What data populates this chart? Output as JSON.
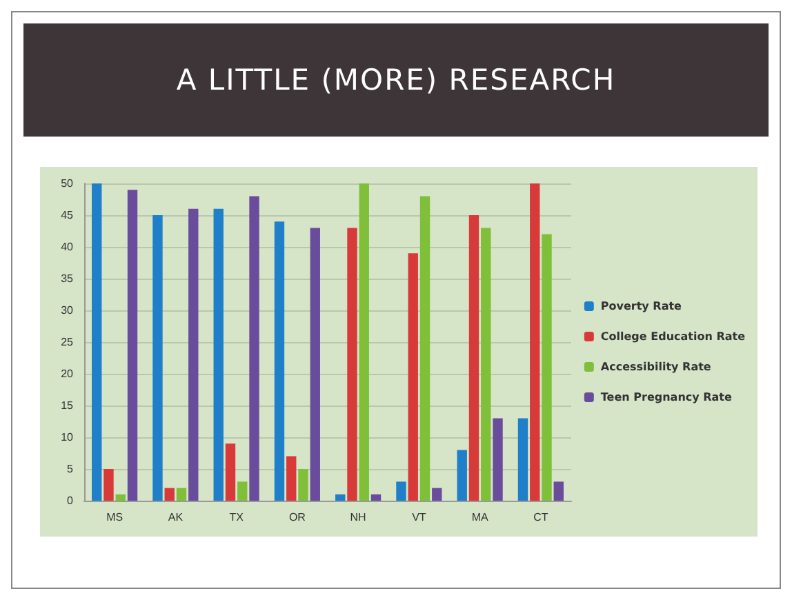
{
  "chart_data": {
    "type": "bar",
    "title": "A LITTLE (MORE) RESEARCH",
    "categories": [
      "MS",
      "AK",
      "TX",
      "OR",
      "NH",
      "VT",
      "MA",
      "CT"
    ],
    "series": [
      {
        "name": "Poverty Rate",
        "color": "#1f7fc8",
        "values": [
          50,
          45,
          46,
          44,
          1,
          3,
          8,
          13
        ]
      },
      {
        "name": "College Education Rate",
        "color": "#d83a3a",
        "values": [
          5,
          2,
          9,
          7,
          43,
          39,
          45,
          50
        ]
      },
      {
        "name": "Accessibility Rate",
        "color": "#7fbf3a",
        "values": [
          1,
          2,
          3,
          5,
          50,
          48,
          43,
          42
        ]
      },
      {
        "name": "Teen Pregnancy Rate",
        "color": "#6a4c9c",
        "values": [
          49,
          46,
          48,
          43,
          1,
          2,
          13,
          3
        ]
      }
    ],
    "ylim": [
      0,
      50
    ],
    "yticks": [
      0,
      5,
      10,
      15,
      20,
      25,
      30,
      35,
      40,
      45,
      50
    ],
    "grid": "y",
    "legend": "right"
  }
}
